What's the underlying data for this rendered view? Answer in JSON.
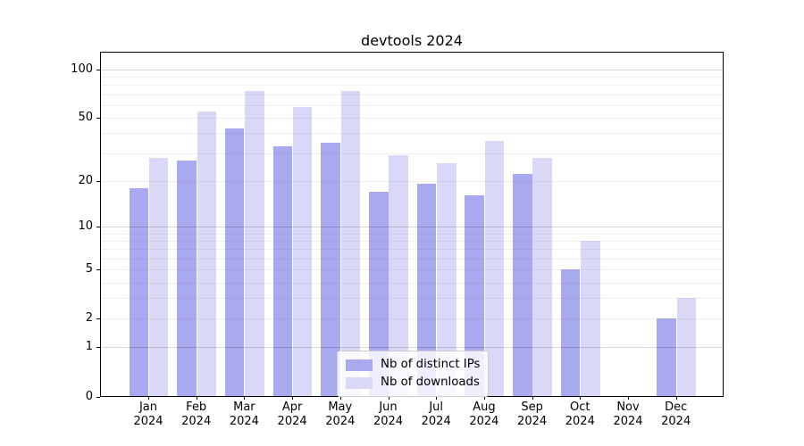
{
  "title": "devtools 2024",
  "legend": {
    "items": [
      {
        "label": "Nb of distinct IPs",
        "color": "#a9a9ef"
      },
      {
        "label": "Nb of downloads",
        "color": "#d9d9f7"
      }
    ]
  },
  "axes": {
    "y_tick_values": [
      0,
      1,
      2,
      5,
      10,
      20,
      50,
      100
    ],
    "x_year": "2024"
  },
  "chart_data": {
    "type": "bar",
    "title": "devtools 2024",
    "categories": [
      "Jan 2024",
      "Feb 2024",
      "Mar 2024",
      "Apr 2024",
      "May 2024",
      "Jun 2024",
      "Jul 2024",
      "Aug 2024",
      "Sep 2024",
      "Oct 2024",
      "Nov 2024",
      "Dec 2024"
    ],
    "series": [
      {
        "name": "Nb of distinct IPs",
        "color": "#a9a9ef",
        "values": [
          18,
          27,
          43,
          33,
          35,
          17,
          19,
          16,
          22,
          5,
          0,
          2
        ]
      },
      {
        "name": "Nb of downloads",
        "color": "#d9d9f7",
        "values": [
          28,
          55,
          73,
          58,
          73,
          29,
          26,
          36,
          28,
          8,
          0,
          3
        ]
      }
    ],
    "xlabel": "",
    "ylabel": "",
    "yscale": "log1p",
    "y_ticks": [
      0,
      1,
      2,
      5,
      10,
      20,
      50,
      100
    ],
    "ylim": [
      0,
      127
    ],
    "grid": true,
    "gridlines_over_bars": true,
    "legend_position": "lower-center-inside"
  }
}
